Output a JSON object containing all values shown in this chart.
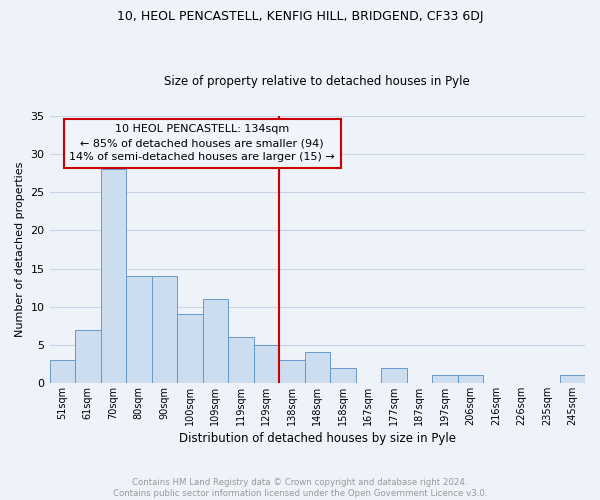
{
  "title": "10, HEOL PENCASTELL, KENFIG HILL, BRIDGEND, CF33 6DJ",
  "subtitle": "Size of property relative to detached houses in Pyle",
  "xlabel": "Distribution of detached houses by size in Pyle",
  "ylabel": "Number of detached properties",
  "bar_labels": [
    "51sqm",
    "61sqm",
    "70sqm",
    "80sqm",
    "90sqm",
    "100sqm",
    "109sqm",
    "119sqm",
    "129sqm",
    "138sqm",
    "148sqm",
    "158sqm",
    "167sqm",
    "177sqm",
    "187sqm",
    "197sqm",
    "206sqm",
    "216sqm",
    "226sqm",
    "235sqm",
    "245sqm"
  ],
  "bar_values": [
    3,
    7,
    28,
    14,
    14,
    9,
    11,
    6,
    5,
    3,
    4,
    2,
    0,
    2,
    0,
    1,
    1,
    0,
    0,
    0,
    1
  ],
  "bar_color": "#ccddf0",
  "bar_edge_color": "#6699cc",
  "vline_x": 8.5,
  "vline_color": "#cc0000",
  "annotation_line1": "10 HEOL PENCASTELL: 134sqm",
  "annotation_line2": "← 85% of detached houses are smaller (94)",
  "annotation_line3": "14% of semi-detached houses are larger (15) →",
  "annotation_box_edgecolor": "#cc0000",
  "annotation_box_facecolor": "#f0f4fb",
  "ylim": [
    0,
    35
  ],
  "yticks": [
    0,
    5,
    10,
    15,
    20,
    25,
    30,
    35
  ],
  "footer_text": "Contains HM Land Registry data © Crown copyright and database right 2024.\nContains public sector information licensed under the Open Government Licence v3.0.",
  "footer_color": "#999999",
  "grid_color": "#c8d4e8",
  "background_color": "#eef2f9"
}
